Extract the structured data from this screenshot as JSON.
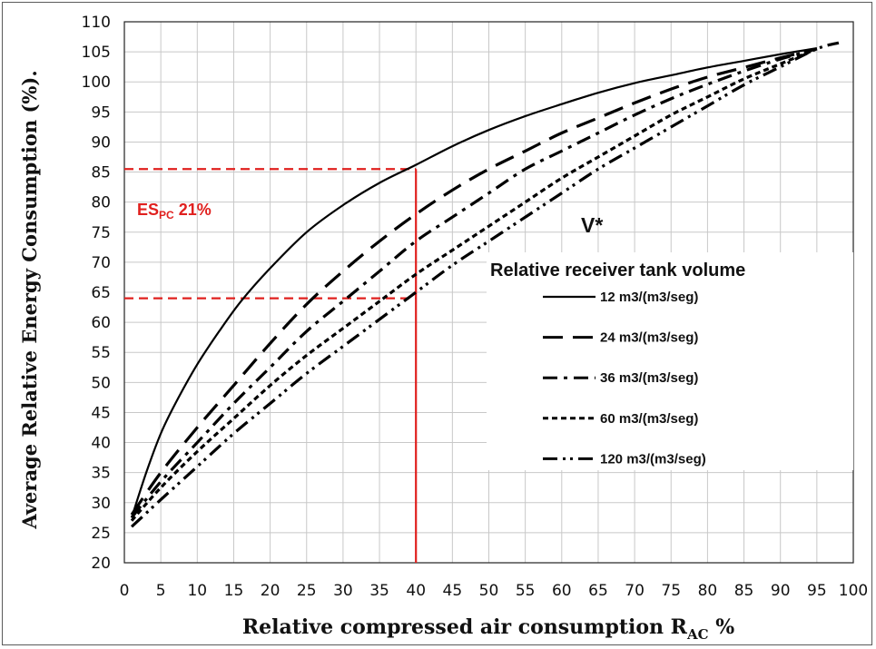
{
  "chart_data": {
    "type": "line",
    "title": "",
    "xlabel": "Relative compressed air consumption R",
    "xlabel_sub": "AC",
    "xlabel_suffix": " %",
    "ylabel": "Average Relative Energy Consumption (%).",
    "xlim": [
      0,
      100
    ],
    "ylim": [
      20,
      110
    ],
    "xticks": [
      0,
      5,
      10,
      15,
      20,
      25,
      30,
      35,
      40,
      45,
      50,
      55,
      60,
      65,
      70,
      75,
      80,
      85,
      90,
      95,
      100
    ],
    "yticks": [
      20,
      25,
      30,
      35,
      40,
      45,
      50,
      55,
      60,
      65,
      70,
      75,
      80,
      85,
      90,
      95,
      100,
      105,
      110
    ],
    "grid": true,
    "legend_title": "Relative receiver tank volume",
    "legend_position": "right-center",
    "series": [
      {
        "name": "12 m3/(m3/seg)",
        "dash": "solid",
        "x": [
          1,
          3,
          5,
          7,
          10,
          13,
          16,
          20,
          25,
          30,
          35,
          40,
          45,
          50,
          55,
          60,
          65,
          70,
          75,
          80,
          85,
          90,
          95
        ],
        "y": [
          27.5,
          35,
          41.5,
          46.5,
          53,
          58.5,
          63.5,
          69,
          75,
          79.5,
          83.2,
          86.2,
          89.3,
          92,
          94.3,
          96.3,
          98.2,
          99.8,
          101.1,
          102.4,
          103.5,
          104.6,
          105.6
        ]
      },
      {
        "name": "24 m3/(m3/seg)",
        "dash": "long-dash",
        "x": [
          1,
          5,
          10,
          15,
          20,
          25,
          30,
          35,
          40,
          45,
          50,
          55,
          60,
          65,
          70,
          75,
          80,
          85,
          90,
          95
        ],
        "y": [
          28,
          35,
          42.5,
          49.5,
          56.5,
          63,
          68.5,
          73.5,
          78,
          82,
          85.5,
          88.5,
          91.5,
          94,
          96.5,
          98.8,
          100.8,
          102.4,
          104,
          105.5
        ]
      },
      {
        "name": "36 m3/(m3/seg)",
        "dash": "dash-dot",
        "x": [
          1,
          5,
          10,
          15,
          20,
          25,
          30,
          35,
          40,
          45,
          50,
          55,
          60,
          65,
          70,
          75,
          80,
          85,
          90,
          95
        ],
        "y": [
          27.5,
          33.5,
          40,
          46.5,
          52.5,
          58.5,
          63.5,
          68.5,
          73.5,
          77.5,
          81.5,
          85.5,
          88.5,
          91.5,
          94.5,
          97.2,
          99.6,
          101.8,
          103.8,
          105.5
        ]
      },
      {
        "name": "60 m3/(m3/seg)",
        "dash": "short-dash",
        "x": [
          1,
          5,
          10,
          15,
          20,
          25,
          30,
          35,
          40,
          45,
          50,
          55,
          60,
          65,
          70,
          75,
          80,
          85,
          90,
          95
        ],
        "y": [
          27,
          32.5,
          38.5,
          44,
          49.5,
          54.5,
          59,
          63.5,
          68,
          72,
          76,
          80,
          84,
          87.5,
          91,
          94.5,
          97.5,
          100.5,
          103,
          105.5
        ]
      },
      {
        "name": "120 m3/(m3/seg)",
        "dash": "dash-dot-dot",
        "x": [
          1,
          5,
          10,
          15,
          20,
          25,
          30,
          35,
          40,
          45,
          50,
          55,
          60,
          65,
          70,
          75,
          80,
          85,
          90,
          95,
          98
        ],
        "y": [
          26,
          30.5,
          36,
          41.5,
          46.5,
          51.5,
          56,
          60.5,
          65,
          69.5,
          73.5,
          77.5,
          81.5,
          85.5,
          89,
          92.5,
          96,
          99.5,
          102.5,
          105.5,
          106.5
        ]
      }
    ],
    "reference_lines": {
      "color": "#e0201e",
      "x_value": 40,
      "y_upper": 85.5,
      "y_lower": 64
    },
    "annotations": {
      "v_star": "V*",
      "es_main": "ES",
      "es_sub": "PC",
      "es_value": " 21%"
    }
  }
}
